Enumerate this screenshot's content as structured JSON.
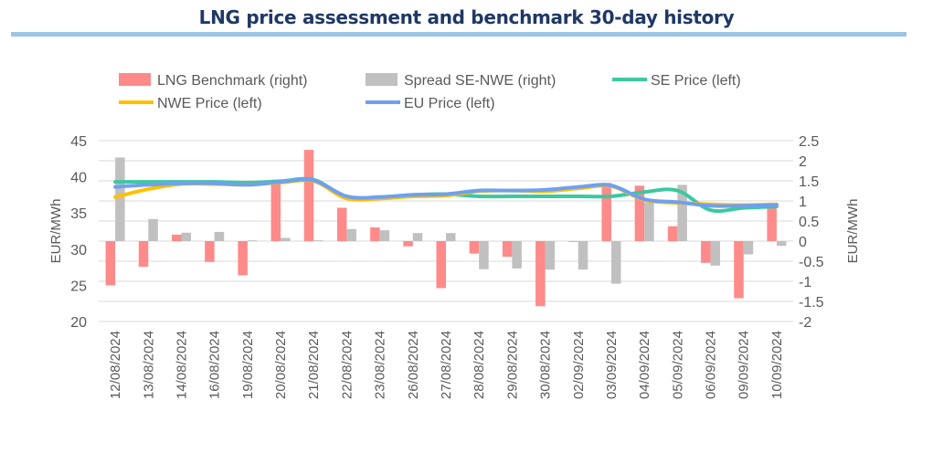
{
  "chart_data": {
    "type": "bar+line",
    "title": "LNG price assessment and benchmark 30-day history",
    "ylabel_left": "EUR/MWh",
    "ylabel_right": "EUR/MWh",
    "ylim_left": [
      20,
      45
    ],
    "yticks_left": [
      45,
      40,
      35,
      30,
      25,
      20
    ],
    "ylim_right": [
      -2,
      2.5
    ],
    "yticks_right": [
      "2.5",
      "2",
      "1.5",
      "1",
      "0.5",
      "0",
      "-0.5",
      "-1",
      "-1.5",
      "-2"
    ],
    "grid": true,
    "legend": "top",
    "categories": [
      "12/08/2024",
      "13/08/2024",
      "14/08/2024",
      "16/08/2024",
      "19/08/2024",
      "20/08/2024",
      "21/08/2024",
      "22/08/2024",
      "23/08/2024",
      "26/08/2024",
      "27/08/2024",
      "28/08/2024",
      "29/08/2024",
      "30/08/2024",
      "02/09/2024",
      "03/09/2024",
      "04/09/2024",
      "05/09/2024",
      "06/09/2024",
      "09/09/2024",
      "10/09/2024"
    ],
    "series": [
      {
        "name": "LNG Benchmark (right)",
        "kind": "bar",
        "axis": "right",
        "color": "#ff8a8a",
        "values": [
          -1.1,
          -0.64,
          0.16,
          -0.52,
          -0.85,
          1.42,
          2.27,
          0.83,
          0.34,
          -0.13,
          -1.17,
          -0.31,
          -0.39,
          -1.62,
          -0.01,
          1.45,
          1.38,
          0.37,
          -0.54,
          -1.42,
          0.83
        ]
      },
      {
        "name": "Spread SE-NWE (right)",
        "kind": "bar",
        "axis": "right",
        "color": "#c0c0c0",
        "values": [
          2.08,
          0.55,
          0.21,
          0.23,
          0.02,
          0.08,
          0.02,
          0.3,
          0.27,
          0.2,
          0.2,
          -0.7,
          -0.68,
          -0.71,
          -0.71,
          -1.06,
          0.96,
          1.4,
          -0.61,
          -0.33,
          -0.12
        ]
      },
      {
        "name": "SE Price (left)",
        "kind": "line",
        "axis": "left",
        "color": "#3cc8a0",
        "values": [
          39.3,
          39.3,
          39.3,
          39.3,
          39.2,
          39.4,
          39.6,
          37.2,
          37.2,
          37.5,
          37.6,
          37.3,
          37.3,
          37.3,
          37.3,
          37.3,
          37.9,
          38.1,
          35.4,
          35.7,
          35.9
        ]
      },
      {
        "name": "NWE Price (left)",
        "kind": "line",
        "axis": "left",
        "color": "#ffc000",
        "values": [
          37.2,
          38.3,
          39.0,
          39.0,
          38.9,
          39.2,
          39.4,
          37.0,
          37.0,
          37.3,
          37.4,
          38.0,
          38.1,
          38.0,
          38.4,
          38.7,
          36.8,
          36.4,
          36.2,
          36.1,
          36.2
        ]
      },
      {
        "name": "EU Price (left)",
        "kind": "line",
        "axis": "left",
        "color": "#6fa0f0",
        "values": [
          38.6,
          38.9,
          39.1,
          39.1,
          38.9,
          39.3,
          39.5,
          37.3,
          37.2,
          37.5,
          37.6,
          38.1,
          38.1,
          38.2,
          38.6,
          38.8,
          36.9,
          36.5,
          36.0,
          36.0,
          36.1
        ]
      }
    ]
  }
}
